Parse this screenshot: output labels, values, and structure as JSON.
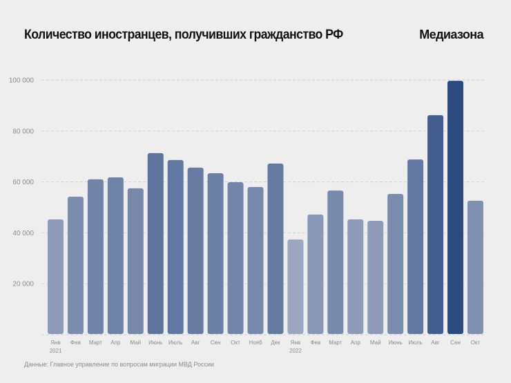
{
  "header": {
    "title": "Количество иностранцев, получивших гражданство РФ",
    "brand": "Медиазона"
  },
  "source": "Данные: Главное управление по вопросам миграции МВД России",
  "chart_data": {
    "type": "bar",
    "title": "Количество иностранцев, получивших гражданство РФ",
    "xlabel": "",
    "ylabel": "",
    "ylim": [
      0,
      100000
    ],
    "yticks": [
      20000,
      40000,
      60000,
      80000,
      100000
    ],
    "ytick_labels": [
      "20 000",
      "40 000",
      "60 000",
      "80 000",
      "100 000"
    ],
    "grid": true,
    "categories": [
      "Янв",
      "Фев",
      "Март",
      "Апр",
      "Май",
      "Июнь",
      "Июль",
      "Авг",
      "Сен",
      "Окт",
      "Нояб",
      "Дек",
      "Янв",
      "Фев",
      "Март",
      "Апр",
      "Май",
      "Июнь",
      "Июль",
      "Авг",
      "Сен",
      "Окт"
    ],
    "year_labels": {
      "0": "2021",
      "12": "2022"
    },
    "values": [
      45300,
      54200,
      61000,
      61800,
      57500,
      71300,
      68600,
      65600,
      63400,
      59900,
      58000,
      67200,
      37400,
      47200,
      56600,
      45300,
      44700,
      55300,
      68800,
      86200,
      99700,
      52600
    ],
    "colors": {
      "low": "#9ba6c0",
      "high": "#2b4a80"
    }
  }
}
